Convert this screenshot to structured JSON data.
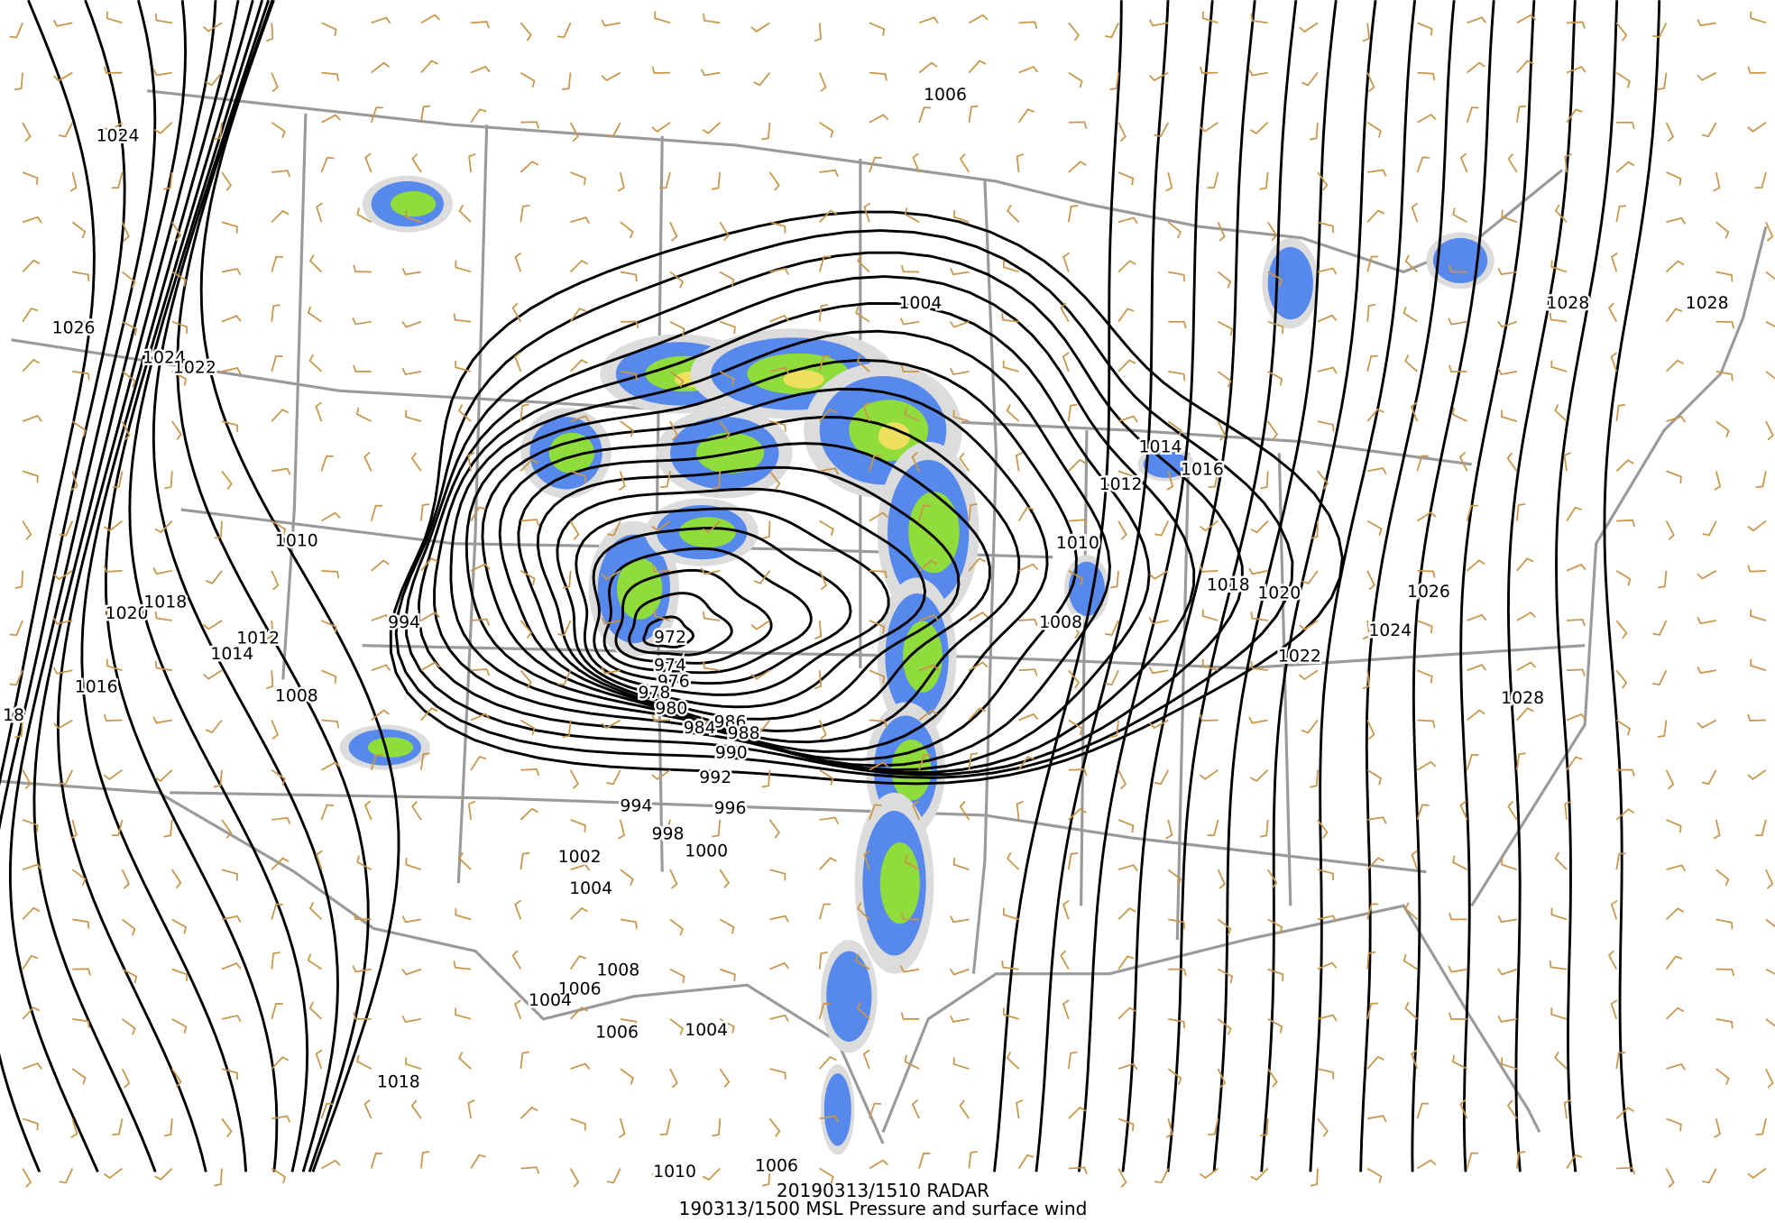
{
  "map": {
    "isobar_labels": [
      "1006",
      "1024",
      "1026",
      "1024",
      "1022",
      "1004",
      "1028",
      "1028",
      "1014",
      "1016",
      "1012",
      "1010",
      "1010",
      "994",
      "1020",
      "1018",
      "1012",
      "1014",
      "1016",
      "18",
      "1008",
      "972",
      "974",
      "976",
      "978",
      "980",
      "984",
      "986",
      "988",
      "990",
      "992",
      "994",
      "996",
      "998",
      "1000",
      "1002",
      "1004",
      "1018",
      "1020",
      "1026",
      "1024",
      "1022",
      "1008",
      "1028",
      "1008",
      "1006",
      "1004",
      "1006",
      "1004",
      "1018",
      "1010",
      "1006"
    ],
    "footer": [
      "20190313/1510 RADAR",
      "190313/1500 MSL Pressure and surface wind"
    ]
  }
}
